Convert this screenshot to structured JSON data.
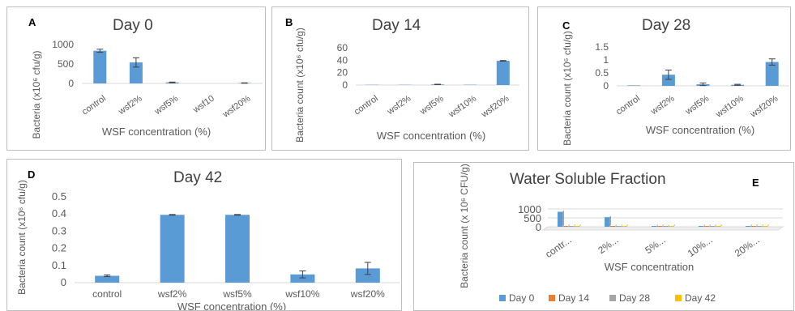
{
  "colors": {
    "bar": "#5b9bd5",
    "axis_text": "#595959",
    "day0": "#5b9bd5",
    "day14": "#ed7d31",
    "day28": "#a5a5a5",
    "day42": "#ffc000"
  },
  "chart_data": [
    {
      "id": "A",
      "type": "bar",
      "letter": "A",
      "title": "Day 0",
      "xlabel": "WSF concentration (%)",
      "ylabel": "Bacteria (x10⁶ cfu/g)",
      "categories": [
        "control",
        "wsf2%",
        "wsf5%",
        "wsf10",
        "wsf20%"
      ],
      "values": [
        840,
        540,
        25,
        0,
        10
      ],
      "errors": [
        40,
        120,
        10,
        0,
        5
      ],
      "yticks": [
        "0",
        "500",
        "1000"
      ],
      "ylim": [
        0,
        1000
      ]
    },
    {
      "id": "B",
      "type": "bar",
      "letter": "B",
      "title": "Day 14",
      "xlabel": "WSF concentration (%)",
      "ylabel": "Bacteria count (x10⁶ cfu/g)",
      "categories": [
        "control",
        "wsf2%",
        "wsf5%",
        "wsf10%",
        "wsf20%"
      ],
      "values": [
        0.4,
        0.4,
        1,
        0.5,
        39
      ],
      "errors": [
        0,
        0,
        0.3,
        0,
        0.5
      ],
      "yticks": [
        "0",
        "20",
        "40",
        "60"
      ],
      "ylim": [
        0,
        60
      ]
    },
    {
      "id": "C",
      "type": "bar",
      "letter": "C",
      "title": "Day 28",
      "xlabel": "WSF concentration (%)",
      "ylabel": "Bacteria count (x10⁶ cfu/g)",
      "categories": [
        "control",
        "wsf2%",
        "wsf5%",
        "wsf10%",
        "wsf20%"
      ],
      "values": [
        0.02,
        0.43,
        0.06,
        0.04,
        0.92
      ],
      "errors": [
        0,
        0.18,
        0.05,
        0.02,
        0.12
      ],
      "yticks": [
        "0",
        "0.5",
        "1",
        "1.5"
      ],
      "ylim": [
        0,
        1.5
      ]
    },
    {
      "id": "D",
      "type": "bar",
      "letter": "D",
      "title": "Day 42",
      "xlabel": "WSF concentration (%)",
      "ylabel": "Bacteria count (x10⁶ cfu/g)",
      "categories": [
        "control",
        "wsf2%",
        "wsf5%",
        "wsf10%",
        "wsf20%"
      ],
      "values": [
        0.04,
        0.395,
        0.395,
        0.048,
        0.083
      ],
      "errors": [
        0.005,
        0.002,
        0.002,
        0.02,
        0.035
      ],
      "yticks": [
        "0",
        "0.1",
        "0.2",
        "0.3",
        "0.4",
        "0.5"
      ],
      "ylim": [
        0,
        0.5
      ]
    },
    {
      "id": "E",
      "type": "bar",
      "letter": "E",
      "title": "Water Soluble Fraction",
      "xlabel": "WSF concentration",
      "ylabel": "Bacteria count (x 10⁶ CFU/g)",
      "categories": [
        "contr...",
        "2%...",
        "5%...",
        "10%...",
        "20%..."
      ],
      "series": [
        {
          "name": "Day 0",
          "values": [
            840,
            540,
            25,
            0,
            10
          ]
        },
        {
          "name": "Day 14",
          "values": [
            0.4,
            0.4,
            1,
            0.5,
            39
          ]
        },
        {
          "name": "Day 28",
          "values": [
            0.02,
            0.43,
            0.06,
            0.04,
            0.92
          ]
        },
        {
          "name": "Day 42",
          "values": [
            0.04,
            0.395,
            0.395,
            0.048,
            0.083
          ]
        }
      ],
      "yticks": [
        "0",
        "500",
        "1000"
      ],
      "ylim": [
        0,
        1000
      ],
      "legend": "bottom"
    }
  ]
}
